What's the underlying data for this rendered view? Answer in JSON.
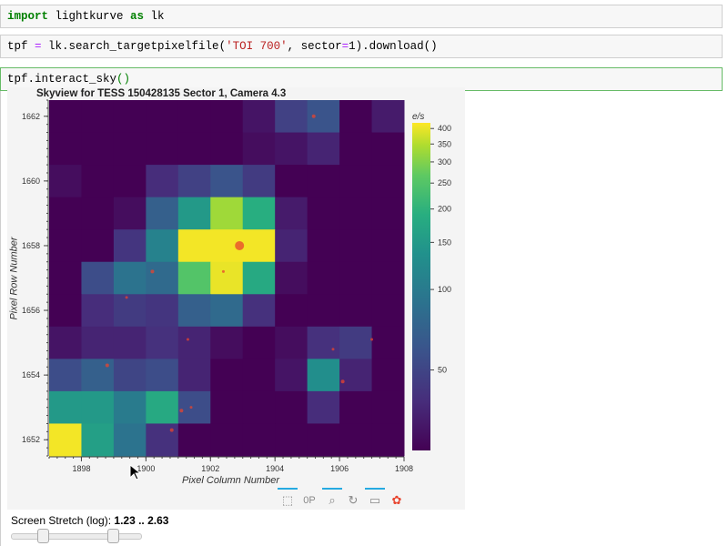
{
  "cells": [
    {
      "parts": [
        {
          "t": "import",
          "c": "kw"
        },
        {
          "t": " lightkurve "
        },
        {
          "t": "as",
          "c": "kw"
        },
        {
          "t": " lk"
        }
      ]
    },
    {
      "parts": [
        {
          "t": "tpf "
        },
        {
          "t": "=",
          "c": "op"
        },
        {
          "t": " lk.search_targetpixelfile("
        },
        {
          "t": "'TOI 700'",
          "c": "str"
        },
        {
          "t": ", sector"
        },
        {
          "t": "=",
          "c": "op"
        },
        {
          "t": "1).download()"
        }
      ]
    },
    {
      "parts": [
        {
          "t": "tpf.interact_sky"
        },
        {
          "t": "()",
          "c": "paren-g"
        }
      ]
    }
  ],
  "chart_data": {
    "type": "heatmap",
    "title": "Skyview for TESS 150428135 Sector 1, Camera 4.3",
    "xlabel": "Pixel Column Number",
    "ylabel": "Pixel Row Number",
    "colorbar_label": "e/s",
    "colorbar_ticks": [
      400,
      350,
      300,
      250,
      200,
      150,
      100,
      50
    ],
    "x_ticks": [
      "1898",
      "1900",
      "1902",
      "1904",
      "1906",
      "1908"
    ],
    "y_ticks": [
      "1662",
      "1660",
      "1658",
      "1656",
      "1654",
      "1652"
    ],
    "columns": [
      1897.5,
      1898.5,
      1899.5,
      1900.5,
      1901.5,
      1902.5,
      1903.5,
      1904.5,
      1905.5,
      1906.5,
      1907.5
    ],
    "rows_top_to_bottom": [
      1662,
      1661,
      1660,
      1659,
      1658,
      1657,
      1656,
      1655,
      1654,
      1653,
      1652
    ],
    "values": [
      [
        25,
        25,
        25,
        25,
        25,
        25,
        30,
        48,
        60,
        25,
        32
      ],
      [
        25,
        25,
        25,
        25,
        25,
        25,
        28,
        30,
        35,
        25,
        25
      ],
      [
        28,
        25,
        25,
        38,
        48,
        60,
        45,
        25,
        25,
        25,
        25
      ],
      [
        25,
        25,
        28,
        70,
        150,
        330,
        190,
        32,
        25,
        25,
        25
      ],
      [
        25,
        25,
        42,
        110,
        410,
        410,
        410,
        35,
        25,
        25,
        25
      ],
      [
        25,
        55,
        90,
        80,
        250,
        400,
        180,
        28,
        25,
        25,
        25
      ],
      [
        25,
        38,
        45,
        42,
        70,
        80,
        40,
        25,
        25,
        25,
        25
      ],
      [
        30,
        35,
        35,
        40,
        35,
        28,
        25,
        28,
        40,
        45,
        25
      ],
      [
        55,
        70,
        50,
        55,
        35,
        25,
        25,
        30,
        130,
        35,
        25
      ],
      [
        150,
        150,
        100,
        180,
        55,
        25,
        25,
        25,
        38,
        25,
        25
      ],
      [
        410,
        160,
        90,
        40,
        25,
        25,
        25,
        25,
        25,
        25,
        25
      ]
    ],
    "stars": [
      {
        "x": 1902.9,
        "y": 1658.0,
        "size": 5
      },
      {
        "x": 1905.2,
        "y": 1662.0,
        "size": 2
      },
      {
        "x": 1900.2,
        "y": 1657.2,
        "size": 2
      },
      {
        "x": 1902.4,
        "y": 1657.2,
        "size": 1.5
      },
      {
        "x": 1899.4,
        "y": 1656.4,
        "size": 1.5
      },
      {
        "x": 1901.3,
        "y": 1655.1,
        "size": 1.5
      },
      {
        "x": 1898.8,
        "y": 1654.3,
        "size": 2
      },
      {
        "x": 1905.8,
        "y": 1654.8,
        "size": 1.5
      },
      {
        "x": 1906.1,
        "y": 1653.8,
        "size": 2
      },
      {
        "x": 1907.0,
        "y": 1655.1,
        "size": 1.5
      },
      {
        "x": 1900.8,
        "y": 1652.3,
        "size": 2
      },
      {
        "x": 1901.1,
        "y": 1652.9,
        "size": 2
      },
      {
        "x": 1901.4,
        "y": 1653.0,
        "size": 1.5
      }
    ],
    "star_color": "#e8442e",
    "colormap": "viridis",
    "color_scale": "log"
  },
  "toolbar": {
    "tools": [
      "box-select-icon",
      "box-zoom-label-icon",
      "wheel-zoom-icon",
      "reset-icon",
      "hover-icon",
      "bokeh-logo-icon"
    ],
    "box_zoom_label": "0P"
  },
  "slider": {
    "label": "Screen Stretch (log): ",
    "value": "1.23 .. 2.63",
    "range": [
      1.23,
      2.63
    ]
  }
}
